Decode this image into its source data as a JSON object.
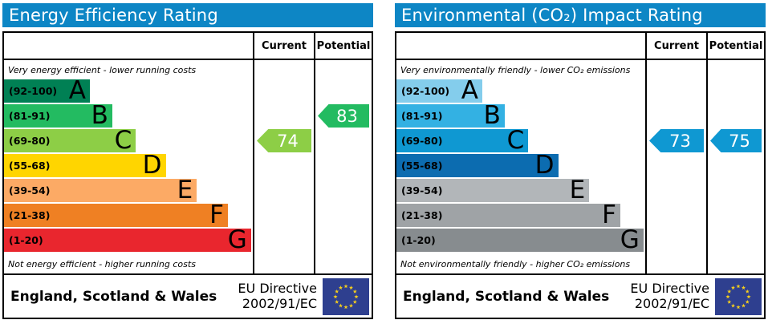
{
  "panels": {
    "left": {
      "title": "Energy Efficiency Rating",
      "columns": {
        "current": "Current",
        "potential": "Potential"
      },
      "top_caption": "Very energy efficient - lower running costs",
      "bottom_caption": "Not energy efficient - higher running costs",
      "bands": [
        {
          "range": "(92-100)",
          "letter": "A",
          "color": "#008054"
        },
        {
          "range": "(81-91)",
          "letter": "B",
          "color": "#23bb61"
        },
        {
          "range": "(69-80)",
          "letter": "C",
          "color": "#8dce46"
        },
        {
          "range": "(55-68)",
          "letter": "D",
          "color": "#ffd500"
        },
        {
          "range": "(39-54)",
          "letter": "E",
          "color": "#fcaa65"
        },
        {
          "range": "(21-38)",
          "letter": "F",
          "color": "#ef8023"
        },
        {
          "range": "(1-20)",
          "letter": "G",
          "color": "#e9262e"
        }
      ],
      "current": {
        "value": "74",
        "color": "#8dce46",
        "band_index": 2
      },
      "potential": {
        "value": "83",
        "color": "#23bb61",
        "band_index": 1
      },
      "footer": {
        "region": "England, Scotland & Wales",
        "directive_line1": "EU Directive",
        "directive_line2": "2002/91/EC"
      }
    },
    "right": {
      "title": "Environmental (CO₂) Impact Rating",
      "columns": {
        "current": "Current",
        "potential": "Potential"
      },
      "top_caption": "Very environmentally friendly - lower CO₂ emissions",
      "bottom_caption": "Not environmentally friendly - higher CO₂ emissions",
      "bands": [
        {
          "range": "(92-100)",
          "letter": "A",
          "color": "#84cdec"
        },
        {
          "range": "(81-91)",
          "letter": "B",
          "color": "#33b1e3"
        },
        {
          "range": "(69-80)",
          "letter": "C",
          "color": "#0f98d2"
        },
        {
          "range": "(55-68)",
          "letter": "D",
          "color": "#0c6cb0"
        },
        {
          "range": "(39-54)",
          "letter": "E",
          "color": "#b2b6b9"
        },
        {
          "range": "(21-38)",
          "letter": "F",
          "color": "#9fa3a6"
        },
        {
          "range": "(1-20)",
          "letter": "G",
          "color": "#878c8f"
        }
      ],
      "current": {
        "value": "73",
        "color": "#0f98d2",
        "band_index": 2
      },
      "potential": {
        "value": "75",
        "color": "#0f98d2",
        "band_index": 2
      },
      "footer": {
        "region": "England, Scotland & Wales",
        "directive_line1": "EU Directive",
        "directive_line2": "2002/91/EC"
      }
    }
  },
  "theme": {
    "header_bg": "#0d86c5",
    "header_text": "#ffffff",
    "eu_flag_bg": "#2e3f8f",
    "eu_star_color": "#f8d01c",
    "border_color": "#000000"
  },
  "chart_data": [
    {
      "type": "bar",
      "title": "Energy Efficiency Rating",
      "categories": [
        "A (92-100)",
        "B (81-91)",
        "C (69-80)",
        "D (55-68)",
        "E (39-54)",
        "F (21-38)",
        "G (1-20)"
      ],
      "values": [
        34.5,
        43.5,
        53,
        65,
        77.5,
        90,
        99.3
      ],
      "value_unit": "relative band bar width (%)",
      "current_rating": 74,
      "current_band": "C",
      "potential_rating": 83,
      "potential_band": "B",
      "xlabel": "",
      "ylabel": "",
      "legend_position": "none",
      "annotations": [
        "Very energy efficient - lower running costs",
        "Not energy efficient - higher running costs",
        "England, Scotland & Wales",
        "EU Directive 2002/91/EC"
      ]
    },
    {
      "type": "bar",
      "title": "Environmental (CO₂) Impact Rating",
      "categories": [
        "A (92-100)",
        "B (81-91)",
        "C (69-80)",
        "D (55-68)",
        "E (39-54)",
        "F (21-38)",
        "G (1-20)"
      ],
      "values": [
        34.5,
        43.5,
        53,
        65,
        77.5,
        90,
        99.3
      ],
      "value_unit": "relative band bar width (%)",
      "current_rating": 73,
      "current_band": "C",
      "potential_rating": 75,
      "potential_band": "C",
      "xlabel": "",
      "ylabel": "",
      "legend_position": "none",
      "annotations": [
        "Very environmentally friendly - lower CO₂ emissions",
        "Not environmentally friendly - higher CO₂ emissions",
        "England, Scotland & Wales",
        "EU Directive 2002/91/EC"
      ]
    }
  ]
}
